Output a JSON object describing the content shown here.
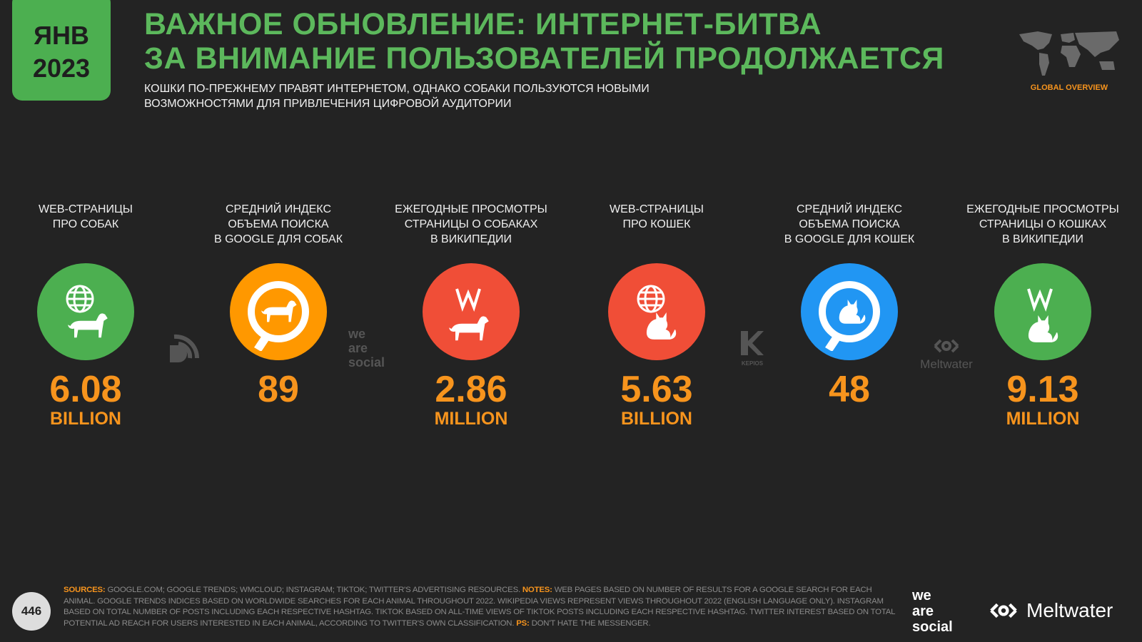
{
  "date": {
    "month": "ЯНВ",
    "year": "2023"
  },
  "title": {
    "line1": "ВАЖНОЕ ОБНОВЛЕНИЕ: ИНТЕРНЕТ-БИТВА",
    "line2": "ЗА ВНИМАНИЕ ПОЛЬЗОВАТЕЛЕЙ ПРОДОЛЖАЕТСЯ"
  },
  "subtitle": {
    "line1": "КОШКИ ПО-ПРЕЖНЕМУ ПРАВЯТ ИНТЕРНЕТОМ, ОДНАКО СОБАКИ ПОЛЬЗУЮТСЯ НОВЫМИ",
    "line2": "ВОЗМОЖНОСТЯМИ ДЛЯ ПРИВЛЕЧЕНИЯ ЦИФРОВОЙ АУДИТОРИИ"
  },
  "section": "GLOBAL OVERVIEW",
  "colors": {
    "green": "#4caf50",
    "orange": "#f7941d",
    "red": "#f04e37",
    "blue": "#2196f3"
  },
  "metrics": [
    {
      "label": [
        "WEB-СТРАНИЦЫ",
        "ПРО СОБАК",
        ""
      ],
      "value": "6.08",
      "unit": "BILLION",
      "icon": "globe-dog-icon",
      "color": "#4caf50"
    },
    {
      "label": [
        "СРЕДНИЙ ИНДЕКС",
        "ОБЪЕМА ПОИСКА",
        "В GOOGLE ДЛЯ СОБАК"
      ],
      "value": "89",
      "unit": "",
      "icon": "search-dog-icon",
      "color": "#ff9800"
    },
    {
      "label": [
        "ЕЖЕГОДНЫЕ ПРОСМОТРЫ",
        "СТРАНИЦЫ О СОБАКАХ",
        "В ВИКИПЕДИИ"
      ],
      "value": "2.86",
      "unit": "MILLION",
      "icon": "wikipedia-dog-icon",
      "color": "#f04e37"
    },
    {
      "label": [
        "WEB-СТРАНИЦЫ",
        "ПРО КОШЕК",
        ""
      ],
      "value": "5.63",
      "unit": "BILLION",
      "icon": "globe-cat-icon",
      "color": "#f04e37"
    },
    {
      "label": [
        "СРЕДНИЙ ИНДЕКС",
        "ОБЪЕМА ПОИСКА",
        "В GOOGLE ДЛЯ КОШЕК"
      ],
      "value": "48",
      "unit": "",
      "icon": "search-cat-icon",
      "color": "#2196f3"
    },
    {
      "label": [
        "ЕЖЕГОДНЫЕ ПРОСМОТРЫ",
        "СТРАНИЦЫ О КОШКАХ",
        "В ВИКИПЕДИИ"
      ],
      "value": "9.13",
      "unit": "MILLION",
      "icon": "wikipedia-cat-icon",
      "color": "#4caf50"
    }
  ],
  "watermarks": {
    "was": [
      "we",
      "are",
      "social"
    ],
    "kepios": "KEPIOS",
    "meltwater": "Meltwater"
  },
  "footer": {
    "page": "446",
    "sources_label": "SOURCES:",
    "sources": "GOOGLE.COM; GOOGLE TRENDS; WMCLOUD; INSTAGRAM; TIKTOK; TWITTER'S ADVERTISING RESOURCES.",
    "notes_label": "NOTES:",
    "notes": "WEB PAGES BASED ON NUMBER OF RESULTS FOR A GOOGLE SEARCH FOR EACH ANIMAL. GOOGLE TRENDS INDICES BASED ON WORLDWIDE SEARCHES FOR EACH ANIMAL THROUGHOUT 2022. WIKIPEDIA VIEWS REPRESENT VIEWS THROUGHOUT 2022 (ENGLISH LANGUAGE ONLY). INSTAGRAM BASED ON TOTAL NUMBER OF POSTS INCLUDING EACH RESPECTIVE HASHTAG. TIKTOK BASED ON ALL-TIME VIEWS OF TIKTOK POSTS INCLUDING EACH RESPECTIVE HASHTAG. TWITTER INTEREST BASED ON TOTAL POTENTIAL AD REACH FOR USERS INTERESTED IN EACH ANIMAL, ACCORDING TO TWITTER'S OWN CLASSIFICATION.",
    "ps_label": "PS:",
    "ps": "DON'T HATE THE MESSENGER.",
    "brand_was": [
      "we",
      "are",
      "social"
    ],
    "brand_meltwater": "Meltwater"
  }
}
